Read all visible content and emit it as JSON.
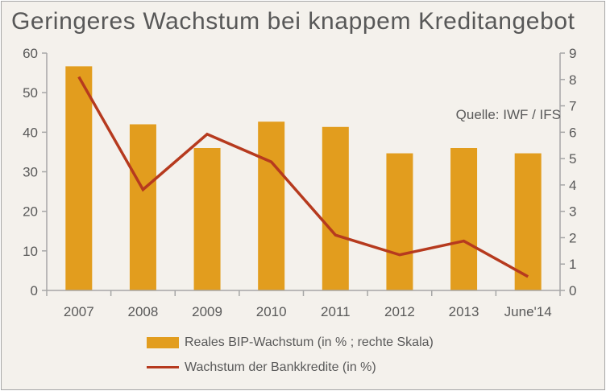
{
  "title": "Geringeres Wachstum bei knappem Kreditangebot",
  "source_note": "Quelle: IWF / IFS",
  "colors": {
    "bar": "#e29d1e",
    "line": "#b63a1e",
    "axis_text": "#595959",
    "axis_line": "#a6a6a6",
    "background": "#f4f1ec"
  },
  "chart_data": {
    "type": "bar",
    "categories": [
      "2007",
      "2008",
      "2009",
      "2010",
      "2011",
      "2012",
      "2013",
      "June'14"
    ],
    "series": [
      {
        "name": "Reales BIP-Wachstum (in % ; rechte Skala)",
        "type": "bar",
        "axis": "right",
        "values": [
          8.5,
          6.3,
          5.4,
          6.4,
          6.2,
          5.2,
          5.4,
          5.2
        ]
      },
      {
        "name": "Wachstum der Bankkredite (in %)",
        "type": "line",
        "axis": "left",
        "values": [
          54,
          25.5,
          39.5,
          32.5,
          14,
          9,
          12.5,
          3.5
        ]
      }
    ],
    "left_axis": {
      "ylim": [
        0,
        60
      ],
      "ticks": [
        "0",
        "10",
        "20",
        "30",
        "40",
        "50",
        "60"
      ]
    },
    "right_axis": {
      "ylim": [
        0,
        9
      ],
      "ticks": [
        "0",
        "1",
        "2",
        "3",
        "4",
        "5",
        "6",
        "7",
        "8",
        "9"
      ]
    },
    "grid": false,
    "legend_position": "bottom"
  }
}
